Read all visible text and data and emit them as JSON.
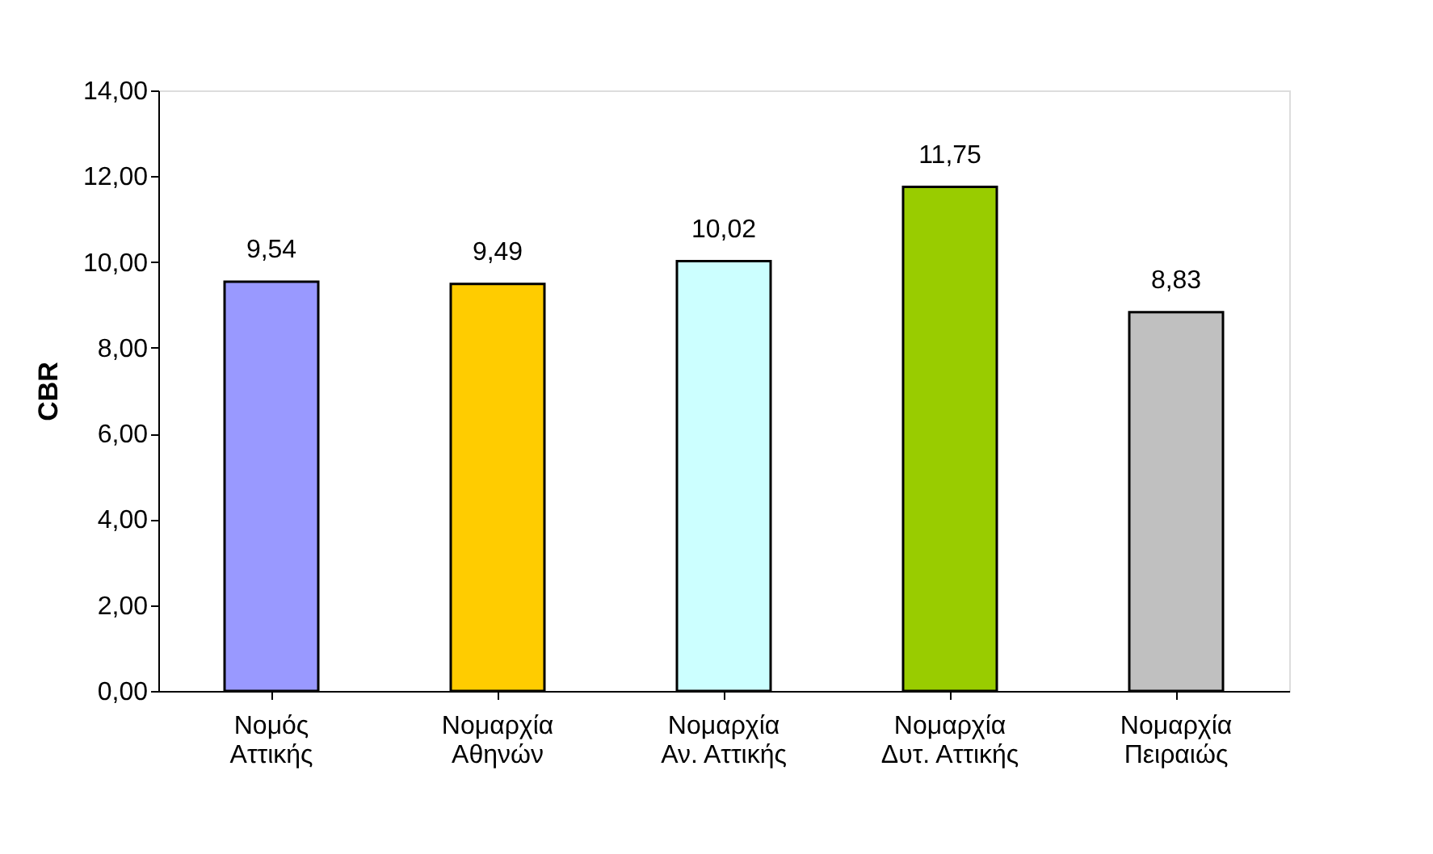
{
  "chart_data": {
    "type": "bar",
    "ylabel": "CBR",
    "categories": [
      "Νομός Αττικής",
      "Νομαρχία Αθηνών",
      "Νομαρχία Αν. Αττικής",
      "Νομαρχία Δυτ. Αττικής",
      "Νομαρχία Πειραιώς"
    ],
    "values": [
      9.54,
      9.49,
      10.02,
      11.75,
      8.83
    ],
    "colors": [
      "#9999ff",
      "#ffcc00",
      "#ccffff",
      "#99cc00",
      "#c0c0c0"
    ],
    "value_labels": [
      "9,54",
      "9,49",
      "10,02",
      "11,75",
      "8,83"
    ],
    "ylim": [
      0,
      14
    ],
    "yticks": [
      {
        "value": 0,
        "label": "0,00"
      },
      {
        "value": 2,
        "label": "2,00"
      },
      {
        "value": 4,
        "label": "4,00"
      },
      {
        "value": 6,
        "label": "6,00"
      },
      {
        "value": 8,
        "label": "8,00"
      },
      {
        "value": 10,
        "label": "10,00"
      },
      {
        "value": 12,
        "label": "12,00"
      },
      {
        "value": 14,
        "label": "14,00"
      }
    ],
    "grid": false,
    "legend": false
  }
}
